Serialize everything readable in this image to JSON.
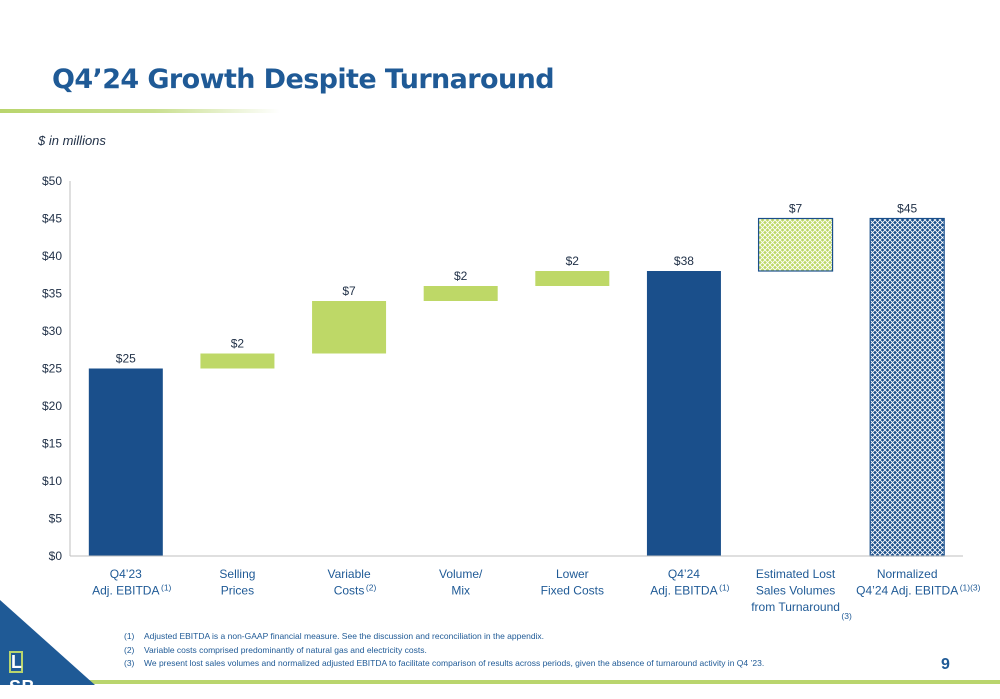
{
  "page": {
    "title": "Q4’24 Growth Despite Turnaround",
    "units": "$ in millions",
    "page_number": "9",
    "logo_text": "LSB",
    "footnotes": [
      {
        "num": "(1)",
        "text": "Adjusted EBITDA is a non-GAAP financial measure.  See the discussion and reconciliation in the appendix."
      },
      {
        "num": "(2)",
        "text": "Variable costs comprised predominantly of natural gas and electricity costs."
      },
      {
        "num": "(3)",
        "text": "We present lost sales volumes and normalized adjusted EBITDA to facilitate comparison of results across periods, given the absence of turnaround activity in Q4 ’23."
      }
    ]
  },
  "chart_data": {
    "type": "bar",
    "subtype": "waterfall",
    "ylim": [
      0,
      50
    ],
    "yticks": [
      0,
      5,
      10,
      15,
      20,
      25,
      30,
      35,
      40,
      45,
      50
    ],
    "ytick_labels": [
      "$0",
      "$5",
      "$10",
      "$15",
      "$20",
      "$25",
      "$30",
      "$35",
      "$40",
      "$45",
      "$50"
    ],
    "grid": false,
    "colors": {
      "total": "#1a4f8b",
      "increase": "#bed867",
      "axis": "#bfbfbf"
    },
    "bars": [
      {
        "category": [
          "Q4’23",
          "Adj. EBITDA"
        ],
        "footnote": "(1)",
        "kind": "total",
        "base": 0,
        "value": 25,
        "label": "$25",
        "pattern": "solid"
      },
      {
        "category": [
          "Selling",
          "Prices"
        ],
        "footnote": "",
        "kind": "increase",
        "base": 25,
        "value": 2,
        "label": "$2",
        "pattern": "solid"
      },
      {
        "category": [
          "Variable",
          "Costs"
        ],
        "footnote": "(2)",
        "kind": "increase",
        "base": 27,
        "value": 7,
        "label": "$7",
        "pattern": "solid"
      },
      {
        "category": [
          "Volume/",
          "Mix"
        ],
        "footnote": "",
        "kind": "increase",
        "base": 34,
        "value": 2,
        "label": "$2",
        "pattern": "solid"
      },
      {
        "category": [
          "Lower",
          "Fixed Costs"
        ],
        "footnote": "",
        "kind": "increase",
        "base": 36,
        "value": 2,
        "label": "$2",
        "pattern": "solid"
      },
      {
        "category": [
          "Q4’24",
          "Adj. EBITDA"
        ],
        "footnote": "(1)",
        "kind": "total",
        "base": 0,
        "value": 38,
        "label": "$38",
        "pattern": "solid"
      },
      {
        "category": [
          "Estimated Lost",
          "Sales Volumes",
          "from Turnaround"
        ],
        "footnote": "(3)",
        "kind": "increase",
        "base": 38,
        "value": 7,
        "label": "$7",
        "pattern": "hatched"
      },
      {
        "category": [
          "Normalized",
          "Q4’24 Adj. EBITDA"
        ],
        "footnote": "(1)(3)",
        "kind": "total",
        "base": 0,
        "value": 45,
        "label": "$45",
        "pattern": "hatched"
      }
    ]
  }
}
